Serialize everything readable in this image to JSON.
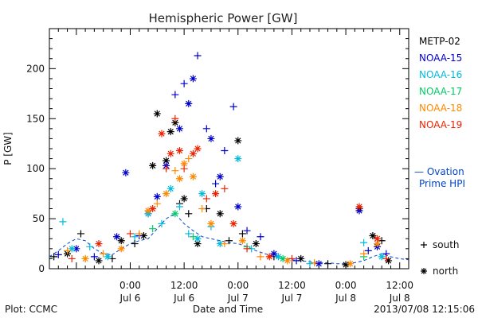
{
  "footer": {
    "left": "Plot: CCMC",
    "right": "2013/07/08 12:15:06"
  },
  "chart_data": {
    "type": "scatter",
    "title": "Hemispheric Power [GW]",
    "xlabel": "Date and Time",
    "ylabel": "P [GW]",
    "x_unit": "hours",
    "xlim": [
      "2013-07-05 06:00",
      "2013-07-08 14:00"
    ],
    "ylim": [
      0,
      240
    ],
    "y_ticks": [
      0,
      50,
      100,
      150,
      200
    ],
    "x_ticks": [
      {
        "time": "2013-07-06 00:00",
        "line1": "0:00",
        "line2": "Jul 6"
      },
      {
        "time": "2013-07-06 12:00",
        "line1": "12:00",
        "line2": "Jul 6"
      },
      {
        "time": "2013-07-07 00:00",
        "line1": "0:00",
        "line2": "Jul 7"
      },
      {
        "time": "2013-07-07 12:00",
        "line1": "12:00",
        "line2": "Jul 7"
      },
      {
        "time": "2013-07-08 00:00",
        "line1": "0:00",
        "line2": "Jul 8"
      },
      {
        "time": "2013-07-08 12:00",
        "line1": "12:00",
        "line2": "Jul 8"
      }
    ],
    "grid": false,
    "legend_position": "right",
    "series": [
      {
        "name": "METP-02",
        "color": "#000000",
        "points": [
          [
            "2013-07-05 07:00",
            12,
            "s"
          ],
          [
            "2013-07-05 10:00",
            15,
            "n"
          ],
          [
            "2013-07-05 13:00",
            35,
            "s"
          ],
          [
            "2013-07-05 17:00",
            8,
            "n"
          ],
          [
            "2013-07-05 20:00",
            10,
            "s"
          ],
          [
            "2013-07-05 22:00",
            28,
            "n"
          ],
          [
            "2013-07-06 01:00",
            25,
            "s"
          ],
          [
            "2013-07-06 03:00",
            33,
            "n"
          ],
          [
            "2013-07-06 05:00",
            103,
            "n"
          ],
          [
            "2013-07-06 06:00",
            155,
            "n"
          ],
          [
            "2013-07-06 08:00",
            108,
            "n"
          ],
          [
            "2013-07-06 09:00",
            137,
            "n"
          ],
          [
            "2013-07-06 10:00",
            146,
            "n"
          ],
          [
            "2013-07-06 11:00",
            65,
            "s"
          ],
          [
            "2013-07-06 12:00",
            70,
            "n"
          ],
          [
            "2013-07-06 13:00",
            55,
            "s"
          ],
          [
            "2013-07-06 15:00",
            25,
            "n"
          ],
          [
            "2013-07-06 17:00",
            60,
            "s"
          ],
          [
            "2013-07-06 20:00",
            55,
            "n"
          ],
          [
            "2013-07-06 22:00",
            28,
            "s"
          ],
          [
            "2013-07-07 00:00",
            128,
            "n"
          ],
          [
            "2013-07-07 01:00",
            35,
            "s"
          ],
          [
            "2013-07-07 04:00",
            25,
            "n"
          ],
          [
            "2013-07-07 08:00",
            12,
            "s"
          ],
          [
            "2013-07-07 14:00",
            10,
            "n"
          ],
          [
            "2013-07-07 20:00",
            5,
            "s"
          ],
          [
            "2013-07-08 00:00",
            4,
            "n"
          ],
          [
            "2013-07-08 03:00",
            60,
            "n"
          ],
          [
            "2013-07-08 06:00",
            33,
            "n"
          ],
          [
            "2013-07-08 08:00",
            28,
            "s"
          ],
          [
            "2013-07-08 09:30",
            8,
            "n"
          ]
        ]
      },
      {
        "name": "NOAA-15",
        "color": "#0000cc",
        "points": [
          [
            "2013-07-05 08:00",
            14,
            "s"
          ],
          [
            "2013-07-05 12:00",
            20,
            "n"
          ],
          [
            "2013-07-05 16:00",
            12,
            "s"
          ],
          [
            "2013-07-05 21:00",
            32,
            "n"
          ],
          [
            "2013-07-05 23:00",
            96,
            "n"
          ],
          [
            "2013-07-06 02:00",
            33,
            "s"
          ],
          [
            "2013-07-06 04:00",
            55,
            "n"
          ],
          [
            "2013-07-06 06:00",
            72,
            "n"
          ],
          [
            "2013-07-06 08:00",
            103,
            "n"
          ],
          [
            "2013-07-06 10:00",
            174,
            "s"
          ],
          [
            "2013-07-06 11:00",
            140,
            "n"
          ],
          [
            "2013-07-06 12:00",
            185,
            "s"
          ],
          [
            "2013-07-06 13:00",
            165,
            "n"
          ],
          [
            "2013-07-06 14:00",
            190,
            "n"
          ],
          [
            "2013-07-06 15:00",
            213,
            "s"
          ],
          [
            "2013-07-06 17:00",
            140,
            "s"
          ],
          [
            "2013-07-06 18:00",
            130,
            "n"
          ],
          [
            "2013-07-06 19:00",
            85,
            "s"
          ],
          [
            "2013-07-06 20:00",
            92,
            "n"
          ],
          [
            "2013-07-06 21:00",
            118,
            "s"
          ],
          [
            "2013-07-06 23:00",
            162,
            "s"
          ],
          [
            "2013-07-07 00:00",
            62,
            "n"
          ],
          [
            "2013-07-07 02:00",
            38,
            "s"
          ],
          [
            "2013-07-07 05:00",
            32,
            "s"
          ],
          [
            "2013-07-07 08:00",
            15,
            "n"
          ],
          [
            "2013-07-07 13:00",
            8,
            "s"
          ],
          [
            "2013-07-07 18:00",
            5,
            "n"
          ],
          [
            "2013-07-08 03:00",
            58,
            "n"
          ],
          [
            "2013-07-08 05:00",
            18,
            "s"
          ],
          [
            "2013-07-08 07:00",
            22,
            "n"
          ],
          [
            "2013-07-08 09:00",
            15,
            "s"
          ]
        ]
      },
      {
        "name": "NOAA-16",
        "color": "#00bbdd",
        "points": [
          [
            "2013-07-05 09:00",
            47,
            "s"
          ],
          [
            "2013-07-05 11:00",
            20,
            "n"
          ],
          [
            "2013-07-05 15:00",
            22,
            "s"
          ],
          [
            "2013-07-05 19:00",
            12,
            "n"
          ],
          [
            "2013-07-06 01:00",
            32,
            "s"
          ],
          [
            "2013-07-06 04:00",
            55,
            "n"
          ],
          [
            "2013-07-06 07:00",
            45,
            "s"
          ],
          [
            "2013-07-06 09:00",
            80,
            "n"
          ],
          [
            "2013-07-06 11:00",
            62,
            "s"
          ],
          [
            "2013-07-06 13:00",
            35,
            "s"
          ],
          [
            "2013-07-06 15:00",
            30,
            "n"
          ],
          [
            "2013-07-06 16:00",
            75,
            "n"
          ],
          [
            "2013-07-06 18:00",
            42,
            "s"
          ],
          [
            "2013-07-06 20:00",
            25,
            "n"
          ],
          [
            "2013-07-07 00:00",
            110,
            "n"
          ],
          [
            "2013-07-07 03:00",
            20,
            "s"
          ],
          [
            "2013-07-07 09:00",
            12,
            "n"
          ],
          [
            "2013-07-07 16:00",
            5,
            "s"
          ],
          [
            "2013-07-08 04:00",
            26,
            "s"
          ],
          [
            "2013-07-08 08:00",
            12,
            "n"
          ]
        ]
      },
      {
        "name": "NOAA-17",
        "color": "#00cc66",
        "points": [
          [
            "2013-07-05 14:00",
            10,
            "s"
          ],
          [
            "2013-07-06 05:00",
            40,
            "s"
          ],
          [
            "2013-07-06 10:00",
            55,
            "n"
          ],
          [
            "2013-07-06 14:00",
            32,
            "s"
          ],
          [
            "2013-07-07 02:00",
            22,
            "s"
          ],
          [
            "2013-07-07 10:00",
            10,
            "n"
          ],
          [
            "2013-07-08 04:00",
            12,
            "s"
          ]
        ]
      },
      {
        "name": "NOAA-18",
        "color": "#ff8800",
        "points": [
          [
            "2013-07-05 10:00",
            18,
            "s"
          ],
          [
            "2013-07-05 14:00",
            10,
            "n"
          ],
          [
            "2013-07-05 18:00",
            15,
            "s"
          ],
          [
            "2013-07-05 22:00",
            20,
            "n"
          ],
          [
            "2013-07-06 02:00",
            35,
            "s"
          ],
          [
            "2013-07-06 04:00",
            58,
            "n"
          ],
          [
            "2013-07-06 06:00",
            65,
            "s"
          ],
          [
            "2013-07-06 08:00",
            75,
            "n"
          ],
          [
            "2013-07-06 10:00",
            98,
            "s"
          ],
          [
            "2013-07-06 11:00",
            90,
            "n"
          ],
          [
            "2013-07-06 12:00",
            105,
            "n"
          ],
          [
            "2013-07-06 13:00",
            110,
            "s"
          ],
          [
            "2013-07-06 14:00",
            92,
            "n"
          ],
          [
            "2013-07-06 16:00",
            60,
            "s"
          ],
          [
            "2013-07-06 18:00",
            45,
            "n"
          ],
          [
            "2013-07-06 21:00",
            25,
            "s"
          ],
          [
            "2013-07-07 01:00",
            28,
            "n"
          ],
          [
            "2013-07-07 05:00",
            12,
            "s"
          ],
          [
            "2013-07-07 11:00",
            8,
            "n"
          ],
          [
            "2013-07-07 17:00",
            6,
            "s"
          ],
          [
            "2013-07-08 01:00",
            5,
            "n"
          ],
          [
            "2013-07-08 04:00",
            15,
            "s"
          ],
          [
            "2013-07-08 07:00",
            25,
            "n"
          ]
        ]
      },
      {
        "name": "NOAA-19",
        "color": "#ee2200",
        "points": [
          [
            "2013-07-05 11:00",
            10,
            "s"
          ],
          [
            "2013-07-05 17:00",
            25,
            "n"
          ],
          [
            "2013-07-06 00:00",
            35,
            "s"
          ],
          [
            "2013-07-06 05:00",
            60,
            "n"
          ],
          [
            "2013-07-06 07:00",
            135,
            "n"
          ],
          [
            "2013-07-06 08:00",
            100,
            "s"
          ],
          [
            "2013-07-06 09:00",
            115,
            "n"
          ],
          [
            "2013-07-06 10:00",
            150,
            "s"
          ],
          [
            "2013-07-06 11:00",
            118,
            "n"
          ],
          [
            "2013-07-06 12:00",
            100,
            "s"
          ],
          [
            "2013-07-06 14:00",
            115,
            "n"
          ],
          [
            "2013-07-06 15:00",
            120,
            "n"
          ],
          [
            "2013-07-06 17:00",
            70,
            "s"
          ],
          [
            "2013-07-06 19:00",
            75,
            "n"
          ],
          [
            "2013-07-06 21:00",
            80,
            "s"
          ],
          [
            "2013-07-06 23:00",
            45,
            "n"
          ],
          [
            "2013-07-07 02:00",
            20,
            "s"
          ],
          [
            "2013-07-07 07:00",
            12,
            "n"
          ],
          [
            "2013-07-07 12:00",
            10,
            "s"
          ],
          [
            "2013-07-08 03:00",
            62,
            "n"
          ],
          [
            "2013-07-08 07:00",
            30,
            "n"
          ],
          [
            "2013-07-08 09:00",
            10,
            "s"
          ]
        ]
      }
    ],
    "ovation": {
      "name_line1": "— Ovation",
      "name_line2": "Prime HPI",
      "color": "#0044cc",
      "points": [
        [
          "2013-07-05 06:00",
          12
        ],
        [
          "2013-07-05 08:00",
          18
        ],
        [
          "2013-07-05 10:00",
          25
        ],
        [
          "2013-07-05 12:00",
          30
        ],
        [
          "2013-07-05 14:00",
          28
        ],
        [
          "2013-07-05 16:00",
          20
        ],
        [
          "2013-07-05 18:00",
          15
        ],
        [
          "2013-07-05 20:00",
          14
        ],
        [
          "2013-07-05 22:00",
          20
        ],
        [
          "2013-07-06 00:00",
          25
        ],
        [
          "2013-07-06 02:00",
          28
        ],
        [
          "2013-07-06 04:00",
          30
        ],
        [
          "2013-07-06 06:00",
          40
        ],
        [
          "2013-07-06 08:00",
          50
        ],
        [
          "2013-07-06 10:00",
          55
        ],
        [
          "2013-07-06 12:00",
          45
        ],
        [
          "2013-07-06 14:00",
          38
        ],
        [
          "2013-07-06 16:00",
          32
        ],
        [
          "2013-07-06 18:00",
          30
        ],
        [
          "2013-07-06 20:00",
          28
        ],
        [
          "2013-07-06 22:00",
          26
        ],
        [
          "2013-07-07 00:00",
          25
        ],
        [
          "2013-07-07 02:00",
          22
        ],
        [
          "2013-07-07 04:00",
          18
        ],
        [
          "2013-07-07 06:00",
          15
        ],
        [
          "2013-07-07 08:00",
          12
        ],
        [
          "2013-07-07 10:00",
          10
        ],
        [
          "2013-07-07 12:00",
          9
        ],
        [
          "2013-07-07 14:00",
          8
        ],
        [
          "2013-07-07 16:00",
          7
        ],
        [
          "2013-07-07 18:00",
          6
        ],
        [
          "2013-07-07 20:00",
          6
        ],
        [
          "2013-07-07 22:00",
          5
        ],
        [
          "2013-07-08 00:00",
          5
        ],
        [
          "2013-07-08 02:00",
          6
        ],
        [
          "2013-07-08 04:00",
          8
        ],
        [
          "2013-07-08 06:00",
          12
        ],
        [
          "2013-07-08 08:00",
          15
        ],
        [
          "2013-07-08 10:00",
          12
        ],
        [
          "2013-07-08 12:00",
          10
        ],
        [
          "2013-07-08 14:00",
          9
        ]
      ]
    },
    "marker_legend": [
      {
        "symbol": "+",
        "label": "south"
      },
      {
        "symbol": "*",
        "label": "north"
      }
    ]
  }
}
